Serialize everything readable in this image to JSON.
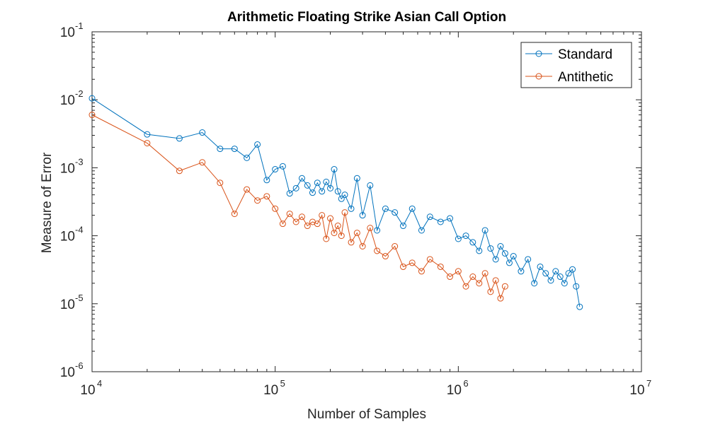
{
  "chart_data": {
    "type": "line",
    "title": "Arithmetic Floating Strike Asian Call Option",
    "xlabel": "Number of Samples",
    "ylabel": "Measure of Error",
    "xscale": "log",
    "yscale": "log",
    "xlim": [
      10000,
      10000000
    ],
    "ylim": [
      1e-06,
      0.1
    ],
    "x_ticks": [
      {
        "base": "10",
        "exp": "4",
        "value": 10000
      },
      {
        "base": "10",
        "exp": "5",
        "value": 100000
      },
      {
        "base": "10",
        "exp": "6",
        "value": 1000000
      },
      {
        "base": "10",
        "exp": "7",
        "value": 10000000
      }
    ],
    "y_ticks": [
      {
        "base": "10",
        "exp": "-6",
        "value": 1e-06
      },
      {
        "base": "10",
        "exp": "-5",
        "value": 1e-05
      },
      {
        "base": "10",
        "exp": "-4",
        "value": 0.0001
      },
      {
        "base": "10",
        "exp": "-3",
        "value": 0.001
      },
      {
        "base": "10",
        "exp": "-2",
        "value": 0.01
      },
      {
        "base": "10",
        "exp": "-1",
        "value": 0.1
      }
    ],
    "grid": false,
    "legend_position": "top-right",
    "series": [
      {
        "name": "Standard",
        "color": "#0072BD",
        "marker": "open-circle",
        "x": [
          10000,
          20000,
          30000,
          40000,
          50000,
          60000,
          70000,
          80000,
          90000,
          100000,
          110000,
          120000,
          130000,
          140000,
          150000,
          160000,
          170000,
          180000,
          190000,
          200000,
          210000,
          220000,
          230000,
          240000,
          260000,
          280000,
          300000,
          330000,
          360000,
          400000,
          450000,
          500000,
          560000,
          630000,
          700000,
          800000,
          900000,
          1000000,
          1100000,
          1200000,
          1300000,
          1400000,
          1500000,
          1600000,
          1700000,
          1800000,
          1900000,
          2000000,
          2200000,
          2400000,
          2600000,
          2800000,
          3000000,
          3200000,
          3400000,
          3600000,
          3800000,
          4000000,
          4200000,
          4400000,
          4600000
        ],
        "y": [
          0.0105,
          0.0031,
          0.0027,
          0.0033,
          0.0019,
          0.0019,
          0.0014,
          0.0022,
          0.00066,
          0.00095,
          0.00105,
          0.00042,
          0.0005,
          0.0007,
          0.00055,
          0.00043,
          0.0006,
          0.00045,
          0.00062,
          0.0005,
          0.00095,
          0.00045,
          0.00035,
          0.0004,
          0.00025,
          0.0007,
          0.0002,
          0.00055,
          0.00012,
          0.00025,
          0.00022,
          0.00014,
          0.00025,
          0.00012,
          0.00019,
          0.00016,
          0.00018,
          9e-05,
          0.0001,
          8e-05,
          6e-05,
          0.00012,
          6.5e-05,
          4.5e-05,
          7e-05,
          5.5e-05,
          4e-05,
          5e-05,
          3e-05,
          4.5e-05,
          2e-05,
          3.5e-05,
          2.8e-05,
          2.2e-05,
          3e-05,
          2.5e-05,
          2e-05,
          2.8e-05,
          3.2e-05,
          1.8e-05,
          9e-06
        ]
      },
      {
        "name": "Antithetic",
        "color": "#D95319",
        "marker": "open-circle",
        "x": [
          10000,
          20000,
          30000,
          40000,
          50000,
          60000,
          70000,
          80000,
          90000,
          100000,
          110000,
          120000,
          130000,
          140000,
          150000,
          160000,
          170000,
          180000,
          190000,
          200000,
          210000,
          220000,
          230000,
          240000,
          260000,
          280000,
          300000,
          330000,
          360000,
          400000,
          450000,
          500000,
          560000,
          630000,
          700000,
          800000,
          900000,
          1000000,
          1100000,
          1200000,
          1300000,
          1400000,
          1500000,
          1600000,
          1700000,
          1800000
        ],
        "y": [
          0.006,
          0.0023,
          0.0009,
          0.0012,
          0.0006,
          0.00021,
          0.00048,
          0.00033,
          0.00038,
          0.00025,
          0.00015,
          0.00021,
          0.00016,
          0.00019,
          0.00014,
          0.00016,
          0.00015,
          0.0002,
          9e-05,
          0.00018,
          0.00011,
          0.00014,
          0.0001,
          0.00022,
          8e-05,
          0.00011,
          7e-05,
          0.00013,
          6e-05,
          5e-05,
          7e-05,
          3.5e-05,
          4e-05,
          3e-05,
          4.5e-05,
          3.5e-05,
          2.5e-05,
          3e-05,
          1.8e-05,
          2.5e-05,
          2e-05,
          2.8e-05,
          1.5e-05,
          2.2e-05,
          1.2e-05,
          1.8e-05
        ]
      }
    ]
  }
}
